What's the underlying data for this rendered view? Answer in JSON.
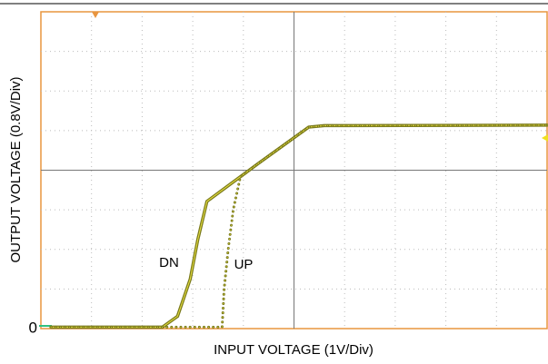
{
  "chart_data": {
    "type": "line",
    "x_label": "OUTPUT VOLTAGE (0.8V/Div)",
    "xlabel": "INPUT VOLTAGE (1V/Div)",
    "xlim": [
      0,
      10
    ],
    "ylim": [
      0,
      6.4
    ],
    "yticks": [
      0
    ],
    "grid": true,
    "series": [
      {
        "name": "DN",
        "color": "#7a7a1c",
        "dotted": false,
        "x": [
          0.2,
          2.4,
          2.7,
          2.95,
          3.1,
          3.28,
          4.3,
          5.29,
          5.6,
          10
        ],
        "values": [
          0.03,
          0.03,
          0.25,
          1.0,
          1.8,
          2.57,
          3.34,
          4.07,
          4.1,
          4.11
        ]
      },
      {
        "name": "UP",
        "color": "#7a7a1c",
        "dotted": true,
        "x": [
          0.2,
          3.58,
          3.62,
          3.7,
          3.8,
          3.94,
          4.3,
          5.29,
          5.6,
          10
        ],
        "values": [
          0.03,
          0.03,
          0.8,
          1.6,
          2.4,
          3.06,
          3.34,
          4.07,
          4.1,
          4.11
        ]
      }
    ]
  }
}
